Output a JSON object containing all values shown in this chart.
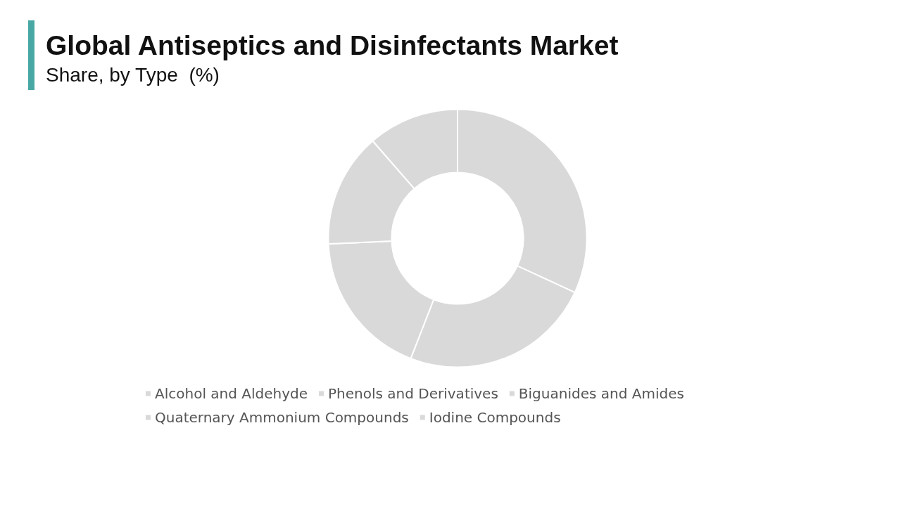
{
  "chart_data": {
    "type": "donut",
    "title": "Global Antiseptics and Disinfectants Market",
    "subtitle": "Share, by Type  (%)",
    "categories": [
      "Alcohol and Aldehyde",
      "Phenols and Derivatives",
      "Biguanides and Amides",
      "Quaternary Ammonium Compounds",
      "Iodine Compounds"
    ],
    "values": [
      31.9,
      24.0,
      18.4,
      14.3,
      11.4
    ],
    "colors": [
      "#d9d9d9",
      "#d9d9d9",
      "#d9d9d9",
      "#d9d9d9",
      "#d9d9d9"
    ],
    "legend": "bottom"
  }
}
